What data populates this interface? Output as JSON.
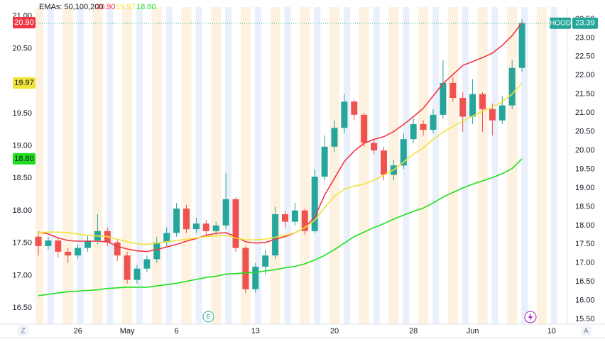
{
  "chart_data": {
    "type": "candlestick",
    "symbol": "HOOD",
    "ema_label": "EMAs: 50,100,200",
    "categories": [
      null,
      null,
      null,
      null,
      "26",
      null,
      null,
      null,
      null,
      "May",
      null,
      null,
      null,
      null,
      "6",
      null,
      null,
      null,
      null,
      null,
      null,
      null,
      "13",
      null,
      null,
      null,
      null,
      null,
      null,
      null,
      "20",
      null,
      null,
      null,
      null,
      null,
      null,
      null,
      "28",
      null,
      null,
      null,
      null,
      null,
      "Jun",
      null,
      null,
      null,
      null,
      null,
      null,
      null,
      "10"
    ],
    "candle_axis": "y2",
    "color_up": "#26a69a",
    "color_down": "#ef5350",
    "open": [
      17.7,
      17.45,
      17.6,
      17.3,
      17.2,
      17.4,
      17.6,
      17.85,
      17.55,
      17.2,
      16.55,
      16.85,
      17.1,
      17.55,
      17.8,
      18.45,
      17.9,
      18.05,
      17.85,
      18.0,
      18.7,
      17.4,
      16.3,
      16.9,
      17.2,
      18.3,
      18.1,
      18.4,
      17.85,
      19.3,
      20.1,
      20.6,
      21.3,
      20.95,
      20.2,
      20.0,
      19.35,
      19.6,
      20.3,
      20.7,
      20.55,
      20.95,
      21.8,
      21.4,
      20.9,
      21.5,
      21.1,
      20.8,
      21.2,
      22.2,
      null,
      null,
      null
    ],
    "high": [
      17.8,
      17.7,
      17.7,
      17.4,
      17.5,
      17.75,
      18.3,
      17.95,
      17.65,
      17.3,
      16.95,
      17.2,
      17.7,
      17.95,
      18.6,
      18.55,
      18.2,
      18.15,
      18.1,
      19.4,
      18.75,
      17.45,
      17.0,
      17.35,
      18.5,
      18.4,
      18.6,
      18.45,
      19.5,
      20.4,
      20.8,
      21.5,
      21.35,
      21.0,
      20.3,
      20.1,
      19.75,
      20.45,
      20.85,
      20.8,
      21.1,
      22.4,
      21.95,
      21.55,
      21.9,
      21.55,
      21.25,
      21.45,
      22.4,
      23.5,
      null,
      null,
      null
    ],
    "low": [
      17.2,
      17.35,
      17.15,
      17.0,
      17.1,
      17.3,
      17.5,
      17.45,
      17.05,
      16.45,
      16.45,
      16.75,
      17.0,
      17.45,
      17.7,
      17.8,
      17.8,
      17.75,
      17.75,
      17.9,
      17.3,
      16.2,
      16.2,
      16.7,
      17.1,
      17.95,
      18.0,
      17.75,
      17.8,
      19.2,
      19.95,
      20.45,
      20.8,
      20.1,
      19.9,
      19.2,
      19.2,
      19.5,
      20.2,
      20.4,
      20.45,
      20.85,
      21.3,
      20.5,
      20.7,
      20.5,
      20.4,
      20.7,
      21.1,
      22.1,
      null,
      null,
      null
    ],
    "close": [
      17.45,
      17.6,
      17.3,
      17.2,
      17.4,
      17.6,
      17.85,
      17.55,
      17.2,
      16.55,
      16.85,
      17.1,
      17.55,
      17.8,
      18.45,
      17.9,
      18.05,
      17.85,
      18.0,
      18.7,
      17.4,
      16.3,
      16.9,
      17.2,
      18.3,
      18.1,
      18.4,
      17.85,
      19.3,
      20.1,
      20.6,
      21.3,
      20.95,
      20.2,
      20.0,
      19.35,
      19.6,
      20.3,
      20.7,
      20.55,
      20.95,
      21.8,
      21.4,
      20.9,
      21.5,
      21.1,
      20.8,
      21.2,
      22.2,
      23.39,
      null,
      null,
      null
    ],
    "series": [
      {
        "color": "#f23645",
        "last_label": "20.90",
        "axis": "y",
        "values": [
          17.67,
          17.64,
          17.58,
          17.54,
          17.53,
          17.53,
          17.53,
          17.52,
          17.45,
          17.41,
          17.38,
          17.37,
          17.4,
          17.44,
          17.48,
          17.53,
          17.57,
          17.62,
          17.65,
          17.66,
          17.6,
          17.52,
          17.5,
          17.51,
          17.56,
          17.6,
          17.66,
          17.74,
          17.9,
          18.24,
          18.5,
          18.76,
          18.92,
          19.04,
          19.1,
          19.14,
          19.22,
          19.33,
          19.45,
          19.58,
          19.77,
          19.96,
          20.1,
          20.24,
          20.3,
          20.36,
          20.43,
          20.55,
          20.7,
          20.9,
          null,
          null,
          null
        ]
      },
      {
        "color": "#f2e33a",
        "last_label": "19.97",
        "axis": "y",
        "values": [
          17.66,
          17.67,
          17.67,
          17.66,
          17.64,
          17.62,
          17.61,
          17.6,
          17.56,
          17.52,
          17.49,
          17.48,
          17.5,
          17.52,
          17.54,
          17.56,
          17.58,
          17.6,
          17.61,
          17.62,
          17.58,
          17.55,
          17.55,
          17.56,
          17.59,
          17.62,
          17.66,
          17.74,
          17.85,
          18.05,
          18.22,
          18.33,
          18.38,
          18.41,
          18.47,
          18.55,
          18.63,
          18.75,
          18.87,
          18.97,
          19.1,
          19.21,
          19.3,
          19.38,
          19.46,
          19.53,
          19.6,
          19.68,
          19.8,
          19.97,
          null,
          null,
          null
        ]
      },
      {
        "color": "#1ee01e",
        "last_label": "18.80",
        "axis": "y",
        "values": [
          16.69,
          16.71,
          16.73,
          16.75,
          16.76,
          16.77,
          16.78,
          16.8,
          16.81,
          16.82,
          16.82,
          16.82,
          16.84,
          16.86,
          16.88,
          16.91,
          16.94,
          16.97,
          16.99,
          17.02,
          17.03,
          17.04,
          17.05,
          17.07,
          17.09,
          17.12,
          17.14,
          17.18,
          17.24,
          17.31,
          17.4,
          17.5,
          17.6,
          17.67,
          17.74,
          17.8,
          17.87,
          17.93,
          17.99,
          18.04,
          18.12,
          18.21,
          18.28,
          18.35,
          18.41,
          18.46,
          18.51,
          18.57,
          18.65,
          18.8,
          null,
          null,
          null
        ]
      }
    ],
    "ylim": [
      16.25,
      21.14
    ],
    "yticks": [
      {
        "value": 16.5,
        "label": "16.50"
      },
      {
        "value": 17,
        "label": "17.00"
      },
      {
        "value": 17.5,
        "label": "17.50"
      },
      {
        "value": 18,
        "label": "18.00"
      },
      {
        "value": 18.5,
        "label": "18.50"
      },
      {
        "value": 19,
        "label": "19.00"
      },
      {
        "value": 19.5,
        "label": "19.50"
      },
      {
        "value": 20,
        "label": "20.00"
      },
      {
        "value": 20.5,
        "label": "20.50"
      },
      {
        "value": 21,
        "label": "21.00"
      }
    ],
    "y2lim": [
      15.37,
      23.82
    ],
    "y2ticks": [
      {
        "value": 15.5,
        "label": "15.50"
      },
      {
        "value": 16,
        "label": "16.00"
      },
      {
        "value": 16.5,
        "label": "16.50"
      },
      {
        "value": 17,
        "label": "17.00"
      },
      {
        "value": 17.5,
        "label": "17.50"
      },
      {
        "value": 18,
        "label": "18.00"
      },
      {
        "value": 18.5,
        "label": "18.50"
      },
      {
        "value": 19,
        "label": "19.00"
      },
      {
        "value": 19.5,
        "label": "19.50"
      },
      {
        "value": 20,
        "label": "20.00"
      },
      {
        "value": 20.5,
        "label": "20.50"
      },
      {
        "value": 21,
        "label": "21.00"
      },
      {
        "value": 21.5,
        "label": "21.50"
      },
      {
        "value": 22,
        "label": "22.00"
      },
      {
        "value": 22.5,
        "label": "22.50"
      },
      {
        "value": 23,
        "label": "23.00"
      },
      {
        "value": 23.5,
        "label": "23.50"
      }
    ],
    "grid": false
  }
}
